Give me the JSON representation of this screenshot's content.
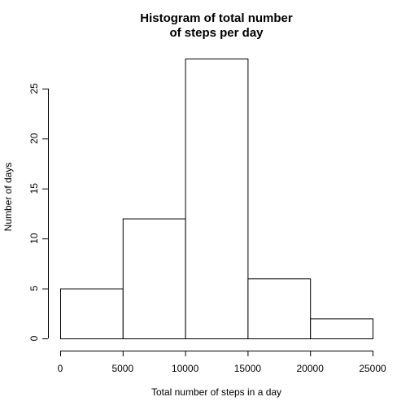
{
  "chart_data": {
    "type": "bar",
    "title_lines": [
      "Histogram of total number",
      "of steps per day"
    ],
    "xlabel": "Total number of steps in a day",
    "ylabel": "Number of days",
    "bins": [
      {
        "from": 0,
        "to": 5000,
        "count": 5
      },
      {
        "from": 5000,
        "to": 10000,
        "count": 12
      },
      {
        "from": 10000,
        "to": 15000,
        "count": 28
      },
      {
        "from": 15000,
        "to": 20000,
        "count": 6
      },
      {
        "from": 20000,
        "to": 25000,
        "count": 2
      }
    ],
    "x_ticks": [
      0,
      5000,
      10000,
      15000,
      20000,
      25000
    ],
    "y_ticks": [
      0,
      5,
      10,
      15,
      20,
      25
    ],
    "xlim": [
      0,
      25000
    ],
    "ylim": [
      0,
      28
    ],
    "grid": false,
    "bar_fill": "#ffffff",
    "bar_stroke": "#000000"
  }
}
